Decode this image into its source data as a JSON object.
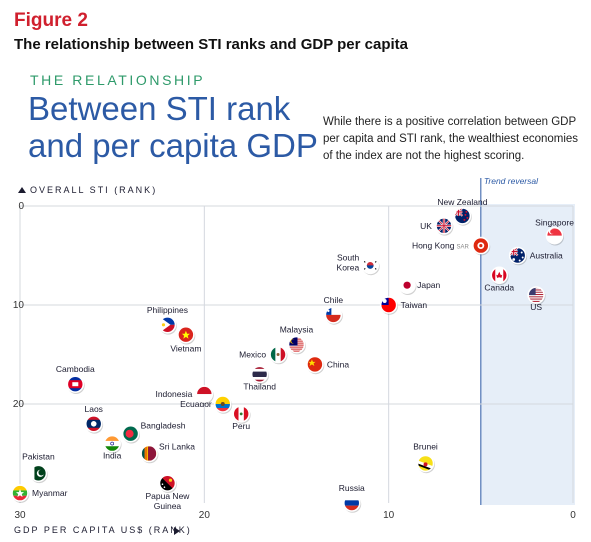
{
  "figure_label": "Figure 2",
  "figure_title": "The relationship between STI ranks and GDP per capita",
  "kicker": "THE RELATIONSHIP",
  "headline": "Between STI rank and per capita GDP",
  "description": "While there is a positive correlation between GDP per capita and STI rank, the wealthiest economies of the index are not the highest scoring.",
  "colors": {
    "accent_red": "#d0202e",
    "kicker_green": "#2e9a6a",
    "headline_blue": "#2c5aa5",
    "shade": "#e6eef8",
    "trend_line": "#2c5aa5"
  },
  "chart_data": {
    "type": "scatter",
    "ylabel": "OVERALL STI (RANK)",
    "xlabel": "GDP PER CAPITA US$ (RANK)",
    "xlim": [
      30,
      0
    ],
    "ylim": [
      0,
      30
    ],
    "x_ticks": [
      30,
      20,
      10,
      0
    ],
    "y_ticks": [
      0,
      10,
      20
    ],
    "grid": true,
    "trend_reversal": {
      "x": 5,
      "label": "Trend reversal"
    },
    "points": [
      {
        "name": "New Zealand",
        "x": 6,
        "y": 1,
        "flag": "nz"
      },
      {
        "name": "UK",
        "x": 7,
        "y": 2,
        "flag": "uk"
      },
      {
        "name": "Singapore",
        "x": 1,
        "y": 3,
        "flag": "sg"
      },
      {
        "name": "Hong Kong",
        "suffix": "SAR",
        "x": 5,
        "y": 4,
        "flag": "hk"
      },
      {
        "name": "Australia",
        "x": 3,
        "y": 5,
        "flag": "au"
      },
      {
        "name": "South Korea",
        "x": 11,
        "y": 6,
        "flag": "kr"
      },
      {
        "name": "Canada",
        "x": 4,
        "y": 7,
        "flag": "ca"
      },
      {
        "name": "Japan",
        "x": 9,
        "y": 8,
        "flag": "jp"
      },
      {
        "name": "US",
        "x": 2,
        "y": 9,
        "flag": "us"
      },
      {
        "name": "Taiwan",
        "x": 10,
        "y": 10,
        "flag": "tw"
      },
      {
        "name": "Chile",
        "x": 13,
        "y": 11,
        "flag": "cl"
      },
      {
        "name": "Philippines",
        "x": 22,
        "y": 12,
        "flag": "ph"
      },
      {
        "name": "Vietnam",
        "x": 21,
        "y": 13,
        "flag": "vn"
      },
      {
        "name": "Malaysia",
        "x": 15,
        "y": 14,
        "flag": "my"
      },
      {
        "name": "Mexico",
        "x": 16,
        "y": 15,
        "flag": "mx"
      },
      {
        "name": "China",
        "x": 14,
        "y": 16,
        "flag": "cn"
      },
      {
        "name": "Thailand",
        "x": 17,
        "y": 17,
        "flag": "th"
      },
      {
        "name": "Cambodia",
        "x": 27,
        "y": 18,
        "flag": "kh"
      },
      {
        "name": "Indonesia",
        "x": 20,
        "y": 19,
        "flag": "id"
      },
      {
        "name": "Ecuador",
        "x": 19,
        "y": 20,
        "flag": "ec"
      },
      {
        "name": "Peru",
        "x": 18,
        "y": 21,
        "flag": "pe"
      },
      {
        "name": "Laos",
        "x": 26,
        "y": 22,
        "flag": "la"
      },
      {
        "name": "Bangladesh",
        "x": 24,
        "y": 23,
        "flag": "bd"
      },
      {
        "name": "India",
        "x": 25,
        "y": 24,
        "flag": "in"
      },
      {
        "name": "Sri Lanka",
        "x": 23,
        "y": 25,
        "flag": "lk"
      },
      {
        "name": "Brunei",
        "x": 8,
        "y": 26,
        "flag": "bn"
      },
      {
        "name": "Pakistan",
        "x": 29,
        "y": 27,
        "flag": "pk"
      },
      {
        "name": "Papua New Guinea",
        "x": 22,
        "y": 28,
        "flag": "pg"
      },
      {
        "name": "Myanmar",
        "x": 30,
        "y": 29,
        "flag": "mm"
      },
      {
        "name": "Russia",
        "x": 12,
        "y": 30,
        "flag": "ru"
      }
    ]
  }
}
